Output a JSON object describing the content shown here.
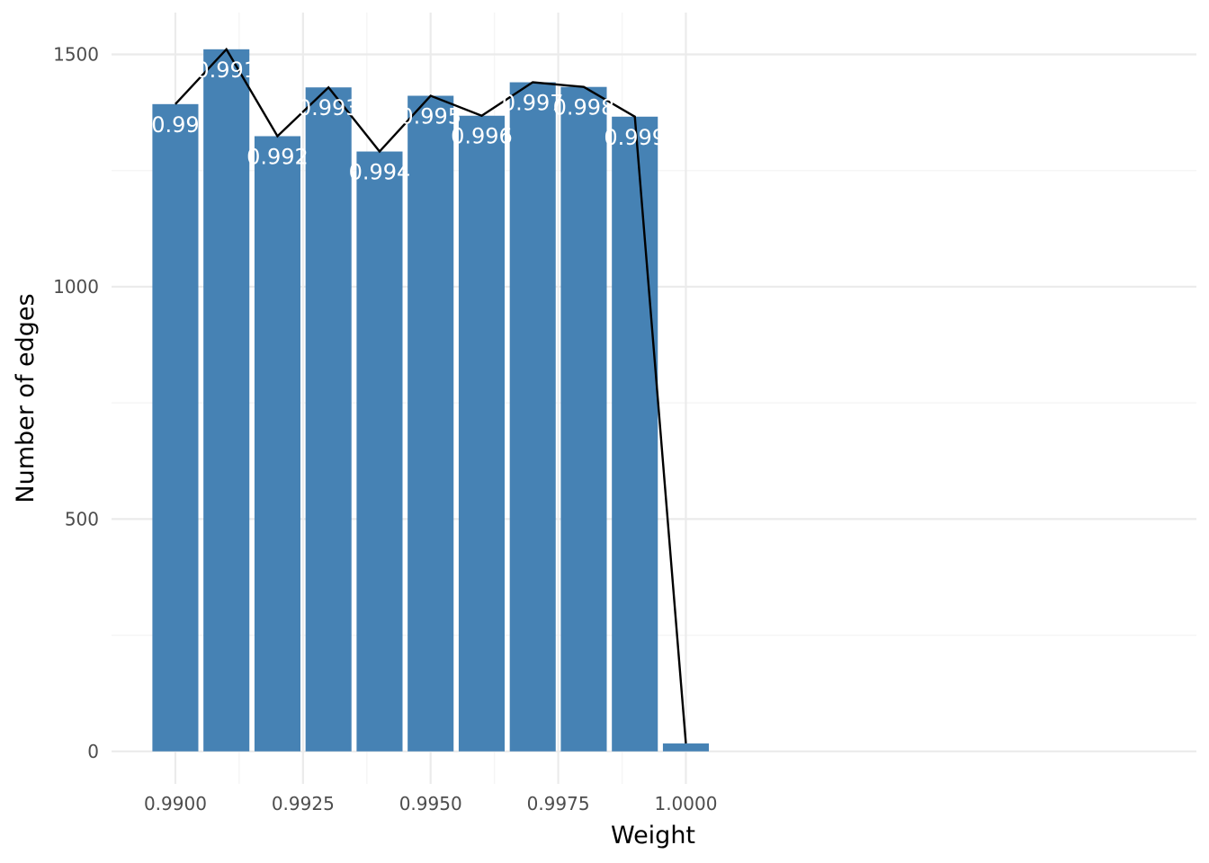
{
  "chart_data": {
    "type": "bar",
    "title": "",
    "xlabel": "Weight",
    "ylabel": "Number of edges",
    "x": [
      0.99,
      0.991,
      0.992,
      0.993,
      0.994,
      0.995,
      0.996,
      0.997,
      0.998,
      0.999,
      1.0
    ],
    "values": [
      1393,
      1511,
      1324,
      1429,
      1291,
      1411,
      1368,
      1440,
      1430,
      1366,
      17
    ],
    "bar_labels": [
      "0.99",
      "0.991",
      "0.992",
      "0.993",
      "0.994",
      "0.995",
      "0.996",
      "0.997",
      "0.998",
      "0.999",
      ""
    ],
    "line_values": [
      1393,
      1511,
      1324,
      1429,
      1291,
      1411,
      1368,
      1440,
      1430,
      1366,
      17
    ],
    "xlim": [
      0.98875,
      1.01
    ],
    "ylim": [
      -70,
      1590
    ],
    "x_ticks": [
      0.99,
      0.9925,
      0.995,
      0.9975,
      1.0
    ],
    "x_tick_labels": [
      "0.9900",
      "0.9925",
      "0.9950",
      "0.9975",
      "1.0000"
    ],
    "x_minor_ticks": [
      0.99125,
      0.99375,
      0.99625,
      0.99875
    ],
    "y_ticks": [
      0,
      500,
      1000,
      1500
    ],
    "y_tick_labels": [
      "0",
      "500",
      "1000",
      "1500"
    ],
    "y_minor_ticks": [
      250,
      750,
      1250
    ],
    "bar_width": 0.0009,
    "grid": true,
    "colors": {
      "bar": "#4682B4",
      "line": "#000000",
      "label": "#ffffff"
    }
  }
}
